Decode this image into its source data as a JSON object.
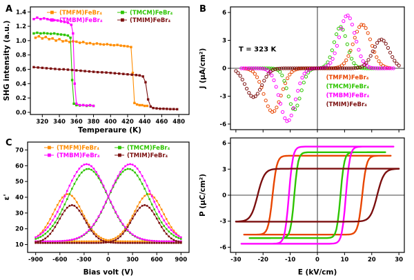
{
  "figure": {
    "panel_labels": {
      "A": "A",
      "B": "B",
      "C": "C"
    }
  },
  "colors": {
    "TMFM_A": "#FF8C00",
    "TMFM_B": "#E84500",
    "TMCM": "#2DC400",
    "TMBM": "#FF00FF",
    "TMIM": "#7B0F0F"
  },
  "chart_data": [
    {
      "id": "panelA",
      "type": "line",
      "xlabel": "Temperaure (K)",
      "ylabel": "SHG intensity (a.u.)",
      "xlim": [
        306,
        492
      ],
      "ylim": [
        -0.03,
        1.47
      ],
      "xticks": [
        320,
        340,
        360,
        380,
        400,
        420,
        440,
        460,
        480
      ],
      "xtick_labels": [
        "320",
        "340",
        "360",
        "380",
        "400",
        "420",
        "440",
        "460",
        "480"
      ],
      "yticks": [
        0.0,
        0.2,
        0.4,
        0.6,
        0.8,
        1.0,
        1.2,
        1.4
      ],
      "ytick_labels": [
        "0.0",
        "0.2",
        "0.4",
        "0.6",
        "0.8",
        "1.0",
        "1.2",
        "1.4"
      ],
      "legend": {
        "style": "grid",
        "entries": [
          {
            "label": "(TMFM)FeBr₄",
            "color": "#FF8C00"
          },
          {
            "label": "(TMCM)FeBr₄",
            "color": "#2DC400"
          },
          {
            "label": "(TMBM)FeBr₄",
            "color": "#FF00FF"
          },
          {
            "label": "(TMIM)FeBr₄",
            "color": "#7B0F0F"
          }
        ]
      },
      "series": [
        {
          "name": "(TMFM)FeBr₄",
          "color": "#FF8C00",
          "points": [
            [
              312,
              1.04
            ],
            [
              316,
              1.06
            ],
            [
              320,
              1.03
            ],
            [
              324,
              1.05
            ],
            [
              328,
              1.02
            ],
            [
              332,
              1.03
            ],
            [
              336,
              1.0
            ],
            [
              340,
              1.02
            ],
            [
              344,
              0.99
            ],
            [
              348,
              1.0
            ],
            [
              352,
              0.98
            ],
            [
              356,
              0.99
            ],
            [
              360,
              0.985
            ],
            [
              364,
              0.97
            ],
            [
              368,
              0.98
            ],
            [
              372,
              0.96
            ],
            [
              376,
              0.965
            ],
            [
              380,
              0.95
            ],
            [
              384,
              0.96
            ],
            [
              388,
              0.95
            ],
            [
              392,
              0.945
            ],
            [
              396,
              0.95
            ],
            [
              400,
              0.94
            ],
            [
              404,
              0.935
            ],
            [
              408,
              0.94
            ],
            [
              412,
              0.93
            ],
            [
              416,
              0.925
            ],
            [
              420,
              0.92
            ],
            [
              424,
              0.91
            ],
            [
              426,
              0.55
            ],
            [
              428,
              0.13
            ],
            [
              431,
              0.11
            ],
            [
              434,
              0.1
            ],
            [
              437,
              0.1
            ],
            [
              440,
              0.09
            ],
            [
              443,
              0.09
            ]
          ]
        },
        {
          "name": "(TMCM)FeBr₄",
          "color": "#2DC400",
          "points": [
            [
              310,
              1.1
            ],
            [
              314,
              1.11
            ],
            [
              318,
              1.1
            ],
            [
              322,
              1.105
            ],
            [
              326,
              1.1
            ],
            [
              330,
              1.095
            ],
            [
              334,
              1.1
            ],
            [
              338,
              1.09
            ],
            [
              342,
              1.085
            ],
            [
              346,
              1.08
            ],
            [
              350,
              1.07
            ],
            [
              353,
              1.04
            ],
            [
              355,
              0.45
            ],
            [
              357,
              0.12
            ],
            [
              360,
              0.1
            ],
            [
              364,
              0.095
            ],
            [
              368,
              0.1
            ],
            [
              372,
              0.09
            ],
            [
              376,
              0.095
            ],
            [
              380,
              0.09
            ]
          ]
        },
        {
          "name": "(TMBM)FeBr₄",
          "color": "#FF00FF",
          "points": [
            [
              310,
              1.3
            ],
            [
              314,
              1.32
            ],
            [
              318,
              1.3
            ],
            [
              322,
              1.31
            ],
            [
              326,
              1.3
            ],
            [
              330,
              1.29
            ],
            [
              334,
              1.285
            ],
            [
              338,
              1.28
            ],
            [
              342,
              1.27
            ],
            [
              346,
              1.26
            ],
            [
              350,
              1.25
            ],
            [
              354,
              1.22
            ],
            [
              356,
              1.1
            ],
            [
              358,
              0.4
            ],
            [
              360,
              0.12
            ],
            [
              364,
              0.1
            ],
            [
              368,
              0.1
            ],
            [
              372,
              0.095
            ],
            [
              376,
              0.1
            ],
            [
              380,
              0.09
            ]
          ]
        },
        {
          "name": "(TMIM)FeBr₄",
          "color": "#7B0F0F",
          "points": [
            [
              310,
              0.63
            ],
            [
              315,
              0.625
            ],
            [
              320,
              0.62
            ],
            [
              325,
              0.615
            ],
            [
              330,
              0.61
            ],
            [
              335,
              0.605
            ],
            [
              340,
              0.6
            ],
            [
              345,
              0.6
            ],
            [
              350,
              0.595
            ],
            [
              355,
              0.59
            ],
            [
              360,
              0.585
            ],
            [
              365,
              0.58
            ],
            [
              370,
              0.575
            ],
            [
              375,
              0.57
            ],
            [
              380,
              0.565
            ],
            [
              385,
              0.56
            ],
            [
              390,
              0.558
            ],
            [
              395,
              0.555
            ],
            [
              400,
              0.55
            ],
            [
              405,
              0.545
            ],
            [
              410,
              0.54
            ],
            [
              415,
              0.535
            ],
            [
              420,
              0.53
            ],
            [
              425,
              0.525
            ],
            [
              430,
              0.52
            ],
            [
              434,
              0.515
            ],
            [
              438,
              0.5
            ],
            [
              441,
              0.42
            ],
            [
              444,
              0.18
            ],
            [
              447,
              0.08
            ],
            [
              450,
              0.06
            ],
            [
              454,
              0.055
            ],
            [
              458,
              0.05
            ],
            [
              462,
              0.05
            ],
            [
              466,
              0.048
            ],
            [
              470,
              0.045
            ],
            [
              474,
              0.045
            ],
            [
              478,
              0.043
            ]
          ]
        }
      ]
    },
    {
      "id": "panelB_J",
      "type": "jloop",
      "ylabel": "J (μA/cm²)",
      "xlim": [
        -32,
        32
      ],
      "ylim": [
        -6.6,
        6.6
      ],
      "xticks": [
        -30,
        -20,
        -10,
        0,
        10,
        20,
        30
      ],
      "yticks": [
        -6,
        -3,
        0,
        3,
        6
      ],
      "ytick_labels": [
        "-6",
        "-3",
        "0",
        "3",
        "6"
      ],
      "zerolines": true,
      "annotation": "T = 323 K",
      "legend": {
        "style": "list",
        "entries": [
          {
            "label": "(TMFM)FeBr₄",
            "color": "#E84500"
          },
          {
            "label": "(TMCM)FeBr₄",
            "color": "#2DC400"
          },
          {
            "label": "(TMBM)FeBr₄",
            "color": "#FF00FF"
          },
          {
            "label": "(TMIM)FeBr₄",
            "color": "#7B0F0F"
          }
        ]
      },
      "series": [
        {
          "name": "(TMFM)FeBr₄",
          "color": "#E84500",
          "Ec": 16.5,
          "amp": 4.7,
          "sigma": 3.2,
          "Emax": 27
        },
        {
          "name": "(TMCM)FeBr₄",
          "color": "#2DC400",
          "Ec": 8.5,
          "amp": 4.45,
          "sigma": 2.4,
          "Emax": 25
        },
        {
          "name": "(TMBM)FeBr₄",
          "color": "#FF00FF",
          "Ec": 11.0,
          "amp": 5.7,
          "sigma": 2.9,
          "Emax": 28
        },
        {
          "name": "(TMIM)FeBr₄",
          "color": "#7B0F0F",
          "Ec": 23.5,
          "amp": 3.1,
          "sigma": 3.0,
          "Emax": 30
        }
      ]
    },
    {
      "id": "panelB_P",
      "type": "ploop",
      "xlabel": "E (kV/cm)",
      "ylabel": "P (μC/cm²)",
      "xlim": [
        -32,
        32
      ],
      "ylim": [
        -6.6,
        6.6
      ],
      "xticks": [
        -30,
        -20,
        -10,
        0,
        10,
        20,
        30
      ],
      "xtick_labels": [
        "-30",
        "-20",
        "-10",
        "0",
        "10",
        "20",
        "30"
      ],
      "yticks": [
        -6,
        -3,
        0,
        3,
        6
      ],
      "ytick_labels": [
        "-6",
        "-3",
        "0",
        "3",
        "6"
      ],
      "zerolines": true,
      "series": [
        {
          "name": "(TMFM)FeBr₄",
          "color": "#E84500",
          "Ps": 4.55,
          "Ec": 16.5,
          "w": 1.6,
          "Emax": 27
        },
        {
          "name": "(TMCM)FeBr₄",
          "color": "#2DC400",
          "Ps": 4.95,
          "Ec": 8.5,
          "w": 1.4,
          "Emax": 25
        },
        {
          "name": "(TMBM)FeBr₄",
          "color": "#FF00FF",
          "Ps": 5.6,
          "Ec": 10.5,
          "w": 1.5,
          "Emax": 28
        },
        {
          "name": "(TMIM)FeBr₄",
          "color": "#7B0F0F",
          "Ps": 3.05,
          "Ec": 22.0,
          "w": 2.5,
          "Emax": 30
        }
      ]
    },
    {
      "id": "panelC",
      "type": "butterfly",
      "xlabel": "Bias volt (V)",
      "ylabel": "ε'",
      "xlim": [
        -1000,
        1000
      ],
      "ylim": [
        5,
        75
      ],
      "xticks": [
        -900,
        -600,
        -300,
        0,
        300,
        600,
        900
      ],
      "xtick_labels": [
        "-900",
        "-600",
        "-300",
        "0",
        "300",
        "600",
        "900"
      ],
      "yticks": [
        10,
        20,
        30,
        40,
        50,
        60,
        70
      ],
      "ytick_labels": [
        "10",
        "20",
        "30",
        "40",
        "50",
        "60",
        "70"
      ],
      "legend": {
        "style": "grid",
        "entries": [
          {
            "label": "(TMFM)FeBr₄",
            "color": "#FF8C00"
          },
          {
            "label": "(TMCM)FeBr₄",
            "color": "#2DC400"
          },
          {
            "label": "(TMBM)FeBr₄",
            "color": "#FF00FF"
          },
          {
            "label": "(TMIM)FeBr₄",
            "color": "#7B0F0F"
          }
        ]
      },
      "series": [
        {
          "name": "(TMFM)FeBr₄",
          "color": "#FF8C00",
          "base": 12,
          "amp": 30,
          "Vp": 500,
          "sigma": 180,
          "Vmax": 900
        },
        {
          "name": "(TMCM)FeBr₄",
          "color": "#2DC400",
          "base": 12,
          "amp": 46,
          "Vp": 250,
          "sigma": 250,
          "Vmax": 900
        },
        {
          "name": "(TMBM)FeBr₄",
          "color": "#FF00FF",
          "base": 12,
          "amp": 49,
          "Vp": 270,
          "sigma": 260,
          "Vmax": 900
        },
        {
          "name": "(TMIM)FeBr₄",
          "color": "#7B0F0F",
          "base": 11,
          "amp": 24,
          "Vp": 450,
          "sigma": 160,
          "Vmax": 900
        }
      ]
    }
  ]
}
